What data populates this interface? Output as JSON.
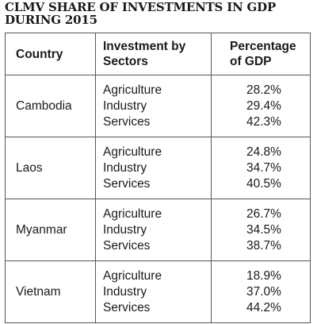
{
  "title_lines": [
    "CLMV SHARE OF INVESTMENTS IN GDP",
    "DURING 2015"
  ],
  "headers": {
    "country": "Country",
    "sectors_line1": "Investment by",
    "sectors_line2": "Sectors",
    "pct_line1": "Percentage",
    "pct_line2": "of GDP"
  },
  "rows": [
    {
      "country": "Cambodia",
      "sectors": [
        "Agriculture",
        "Industry",
        "Services"
      ],
      "percentages": [
        "28.2%",
        "29.4%",
        "42.3%"
      ]
    },
    {
      "country": "Laos",
      "sectors": [
        "Agriculture",
        "Industry",
        "Services"
      ],
      "percentages": [
        "24.8%",
        "34.7%",
        "40.5%"
      ]
    },
    {
      "country": "Myanmar",
      "sectors": [
        "Agriculture",
        "Industry",
        "Services"
      ],
      "percentages": [
        "26.7%",
        "34.5%",
        "38.7%"
      ]
    },
    {
      "country": "Vietnam",
      "sectors": [
        "Agriculture",
        "Industry",
        "Services"
      ],
      "percentages": [
        "18.9%",
        "37.0%",
        "44.2%"
      ]
    }
  ]
}
